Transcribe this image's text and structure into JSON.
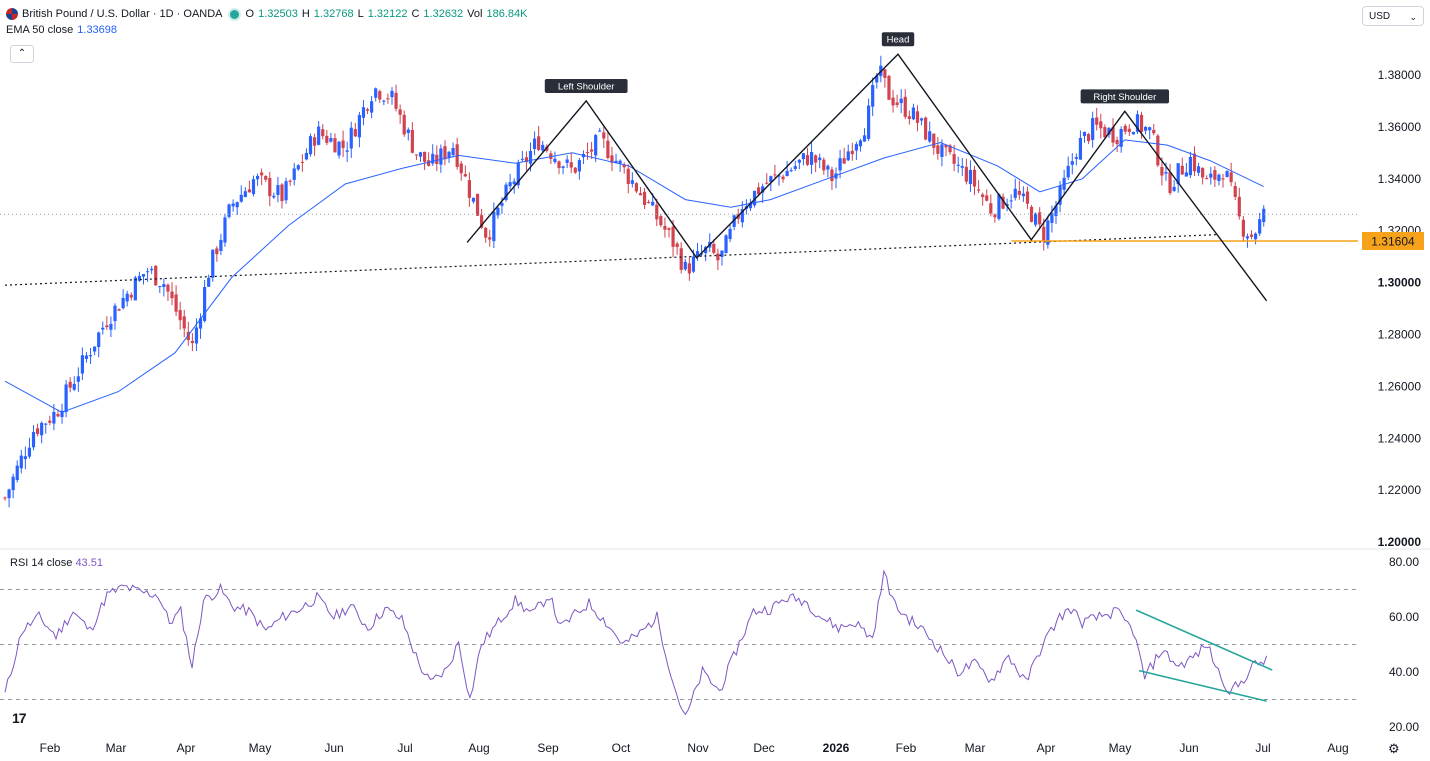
{
  "legend": {
    "symbol": "British Pound / U.S. Dollar · 1D · OANDA",
    "o_label": "O",
    "o_value": "1.32503",
    "h_label": "H",
    "h_value": "1.32768",
    "l_label": "L",
    "l_value": "1.32122",
    "c_label": "C",
    "c_value": "1.32632",
    "vol_label": "Vol",
    "vol_value": "186.84K",
    "ema_label": "EMA 50 close",
    "ema_value": "1.33698"
  },
  "currency": "USD",
  "rsi_legend": {
    "label": "RSI 14 close",
    "value": "43.51"
  },
  "colors": {
    "up": "#2962ff",
    "down": "#d1434e",
    "ema": "#2962ff",
    "rsi": "#7e57c2",
    "trend": "#26a69a",
    "support": "#f7a21b"
  },
  "chart_data": [
    {
      "type": "candlestick",
      "title": "British Pound / U.S. Dollar · 1D · OANDA",
      "ylim": [
        1.2,
        1.39
      ],
      "y_ticks": [
        "1.38000",
        "1.36000",
        "1.34000",
        "1.32000",
        "1.30000",
        "1.28000",
        "1.26000",
        "1.24000",
        "1.22000",
        "1.20000"
      ],
      "y_tick_values": [
        1.38,
        1.36,
        1.34,
        1.32,
        1.3,
        1.28,
        1.26,
        1.24,
        1.22,
        1.2
      ],
      "x_ticks": [
        "Feb",
        "Mar",
        "Apr",
        "May",
        "Jun",
        "Jul",
        "Aug",
        "Sep",
        "Oct",
        "Nov",
        "Dec",
        "2026",
        "Feb",
        "Mar",
        "Apr",
        "May",
        "Jun",
        "Jul",
        "Aug"
      ],
      "price_anchors": [
        [
          0,
          1.217
        ],
        [
          10,
          1.243
        ],
        [
          18,
          1.25
        ],
        [
          26,
          1.266
        ],
        [
          36,
          1.286
        ],
        [
          44,
          1.297
        ],
        [
          50,
          1.305
        ],
        [
          56,
          1.3
        ],
        [
          62,
          1.285
        ],
        [
          66,
          1.275
        ],
        [
          72,
          1.305
        ],
        [
          80,
          1.33
        ],
        [
          88,
          1.34
        ],
        [
          98,
          1.333
        ],
        [
          110,
          1.358
        ],
        [
          120,
          1.352
        ],
        [
          130,
          1.375
        ],
        [
          136,
          1.372
        ],
        [
          145,
          1.35
        ],
        [
          150,
          1.345
        ],
        [
          158,
          1.353
        ],
        [
          164,
          1.335
        ],
        [
          170,
          1.318
        ],
        [
          178,
          1.337
        ],
        [
          188,
          1.355
        ],
        [
          200,
          1.343
        ],
        [
          210,
          1.355
        ],
        [
          222,
          1.338
        ],
        [
          236,
          1.315
        ],
        [
          240,
          1.305
        ],
        [
          248,
          1.313
        ],
        [
          252,
          1.308
        ],
        [
          260,
          1.33
        ],
        [
          268,
          1.338
        ],
        [
          276,
          1.343
        ],
        [
          284,
          1.349
        ],
        [
          292,
          1.34
        ],
        [
          298,
          1.352
        ],
        [
          304,
          1.362
        ],
        [
          308,
          1.382
        ],
        [
          312,
          1.372
        ],
        [
          320,
          1.365
        ],
        [
          330,
          1.35
        ],
        [
          340,
          1.341
        ],
        [
          348,
          1.328
        ],
        [
          356,
          1.335
        ],
        [
          362,
          1.327
        ],
        [
          366,
          1.318
        ],
        [
          372,
          1.333
        ],
        [
          378,
          1.352
        ],
        [
          384,
          1.36
        ],
        [
          392,
          1.357
        ],
        [
          398,
          1.362
        ],
        [
          404,
          1.358
        ],
        [
          410,
          1.337
        ],
        [
          418,
          1.348
        ],
        [
          424,
          1.338
        ],
        [
          430,
          1.344
        ],
        [
          436,
          1.322
        ],
        [
          440,
          1.318
        ],
        [
          444,
          1.326
        ]
      ],
      "ema50_points": [
        [
          0,
          1.262
        ],
        [
          20,
          1.25
        ],
        [
          40,
          1.258
        ],
        [
          60,
          1.273
        ],
        [
          80,
          1.302
        ],
        [
          100,
          1.322
        ],
        [
          120,
          1.338
        ],
        [
          140,
          1.344
        ],
        [
          160,
          1.349
        ],
        [
          180,
          1.346
        ],
        [
          200,
          1.35
        ],
        [
          220,
          1.345
        ],
        [
          240,
          1.332
        ],
        [
          256,
          1.329
        ],
        [
          270,
          1.332
        ],
        [
          290,
          1.34
        ],
        [
          310,
          1.348
        ],
        [
          330,
          1.354
        ],
        [
          350,
          1.345
        ],
        [
          365,
          1.335
        ],
        [
          380,
          1.34
        ],
        [
          395,
          1.355
        ],
        [
          410,
          1.353
        ],
        [
          425,
          1.347
        ],
        [
          444,
          1.337
        ]
      ],
      "last_value": 1.32632,
      "last_value_line": true,
      "support_level": 1.31604,
      "support_label": "1.31604",
      "support_segment_days": [
        355,
        444
      ],
      "neckline": {
        "from": [
          0,
          1.299
        ],
        "to": [
          428,
          1.3185
        ]
      },
      "pattern_polyline": [
        [
          163,
          1.3155
        ],
        [
          205,
          1.37
        ],
        [
          244,
          1.3095
        ],
        [
          315,
          1.388
        ],
        [
          362,
          1.3165
        ],
        [
          395,
          1.366
        ],
        [
          445,
          1.293
        ]
      ],
      "annotations": [
        {
          "label": "Left Shoulder",
          "at": [
            205,
            1.37
          ]
        },
        {
          "label": "Head",
          "at": [
            315,
            1.388
          ]
        },
        {
          "label": "Right Shoulder",
          "at": [
            395,
            1.366
          ]
        }
      ],
      "y_scale": "linear",
      "legend_placement": "top-left"
    },
    {
      "type": "line",
      "title": "RSI 14 close",
      "series_name": "RSI 14 close",
      "ylim": [
        20,
        80
      ],
      "y_ticks": [
        "80.00",
        "60.00",
        "40.00",
        "20.00"
      ],
      "y_tick_values": [
        80,
        60,
        40,
        20
      ],
      "bands": [
        70,
        50,
        30
      ],
      "rsi_anchors": [
        [
          0,
          32
        ],
        [
          6,
          55
        ],
        [
          12,
          60
        ],
        [
          18,
          53
        ],
        [
          24,
          62
        ],
        [
          30,
          55
        ],
        [
          36,
          68
        ],
        [
          42,
          71
        ],
        [
          48,
          69
        ],
        [
          54,
          68
        ],
        [
          58,
          58
        ],
        [
          62,
          62
        ],
        [
          66,
          42
        ],
        [
          70,
          66
        ],
        [
          76,
          70
        ],
        [
          80,
          64
        ],
        [
          86,
          62
        ],
        [
          92,
          55
        ],
        [
          98,
          60
        ],
        [
          104,
          63
        ],
        [
          110,
          67
        ],
        [
          116,
          60
        ],
        [
          122,
          64
        ],
        [
          128,
          56
        ],
        [
          134,
          63
        ],
        [
          140,
          59
        ],
        [
          146,
          43
        ],
        [
          150,
          36
        ],
        [
          156,
          41
        ],
        [
          160,
          51
        ],
        [
          164,
          30
        ],
        [
          168,
          50
        ],
        [
          174,
          58
        ],
        [
          180,
          66
        ],
        [
          186,
          61
        ],
        [
          192,
          68
        ],
        [
          196,
          56
        ],
        [
          200,
          60
        ],
        [
          206,
          65
        ],
        [
          212,
          58
        ],
        [
          218,
          50
        ],
        [
          224,
          54
        ],
        [
          230,
          60
        ],
        [
          236,
          35
        ],
        [
          240,
          23
        ],
        [
          246,
          40
        ],
        [
          252,
          33
        ],
        [
          258,
          48
        ],
        [
          264,
          62
        ],
        [
          270,
          63
        ],
        [
          276,
          67
        ],
        [
          282,
          66
        ],
        [
          288,
          60
        ],
        [
          294,
          56
        ],
        [
          300,
          58
        ],
        [
          306,
          52
        ],
        [
          310,
          76
        ],
        [
          314,
          64
        ],
        [
          318,
          60
        ],
        [
          324,
          55
        ],
        [
          330,
          48
        ],
        [
          336,
          40
        ],
        [
          342,
          43
        ],
        [
          348,
          37
        ],
        [
          354,
          46
        ],
        [
          360,
          36
        ],
        [
          366,
          50
        ],
        [
          372,
          60
        ],
        [
          376,
          63
        ],
        [
          380,
          58
        ],
        [
          386,
          60
        ],
        [
          392,
          62
        ],
        [
          398,
          55
        ],
        [
          402,
          38
        ],
        [
          408,
          48
        ],
        [
          414,
          42
        ],
        [
          420,
          46
        ],
        [
          424,
          50
        ],
        [
          428,
          40
        ],
        [
          432,
          33
        ],
        [
          436,
          36
        ],
        [
          440,
          42
        ],
        [
          444,
          44
        ]
      ],
      "trendlines": [
        {
          "from": [
            399,
            62.5
          ],
          "to": [
            447,
            40.7
          ]
        },
        {
          "from": [
            400,
            40.5
          ],
          "to": [
            445,
            29.4
          ]
        }
      ],
      "last_value": 43.51
    }
  ]
}
